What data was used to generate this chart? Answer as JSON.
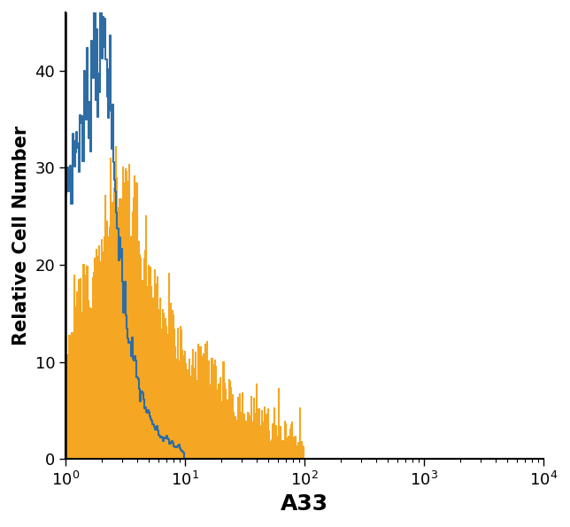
{
  "title": "",
  "xlabel": "A33",
  "ylabel": "Relative Cell Number",
  "ylim": [
    0,
    46
  ],
  "yticks": [
    0,
    10,
    20,
    30,
    40
  ],
  "background_color": "#ffffff",
  "blue_color": "#2e6da4",
  "orange_color": "#f5a623",
  "xlabel_fontsize": 18,
  "ylabel_fontsize": 15,
  "tick_fontsize": 13,
  "blue_linewidth": 1.5,
  "orange_linewidth": 0.8
}
